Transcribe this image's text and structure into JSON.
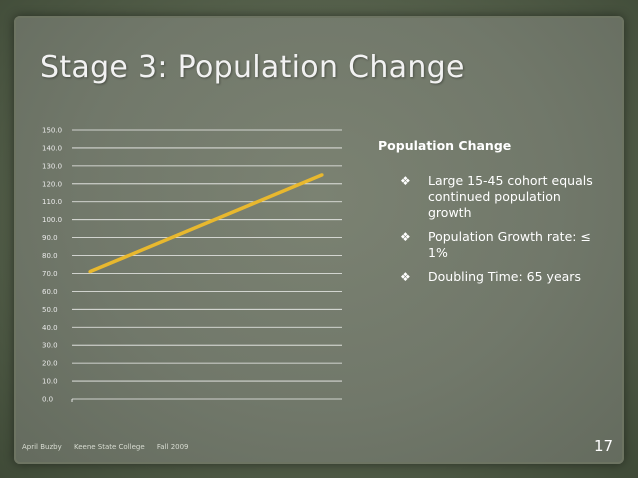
{
  "slide": {
    "title": "Stage 3: Population Change",
    "panel_heading": "Population Change",
    "bullets": [
      {
        "icon": "four-diamond-bullet-icon",
        "text": "Large 15-45 cohort equals continued population growth"
      },
      {
        "icon": "four-diamond-bullet-icon",
        "text": " Population Growth rate:  ≤ 1%"
      },
      {
        "icon": "four-diamond-bullet-icon",
        "text": " Doubling Time: 65 years"
      }
    ],
    "footer": {
      "author": "April Buzby",
      "institution": "Keene State College",
      "term": "Fall 2009"
    },
    "page_number": "17"
  },
  "colors": {
    "line": "#e8b82e",
    "title": "#f2f2f2",
    "text": "#ffffff"
  },
  "chart_data": {
    "type": "line",
    "title": "",
    "xlabel": "",
    "ylabel": "",
    "ylim": [
      0,
      150
    ],
    "y_ticks": [
      "0.0",
      "10.0",
      "20.0",
      "30.0",
      "40.0",
      "50.0",
      "60.0",
      "70.0",
      "80.0",
      "90.0",
      "100.0",
      "110.0",
      "120.0",
      "130.0",
      "140.0",
      "150.0"
    ],
    "grid": true,
    "legend": "none",
    "x": [
      1,
      2
    ],
    "series": [
      {
        "values": [
          71,
          125
        ]
      }
    ]
  }
}
